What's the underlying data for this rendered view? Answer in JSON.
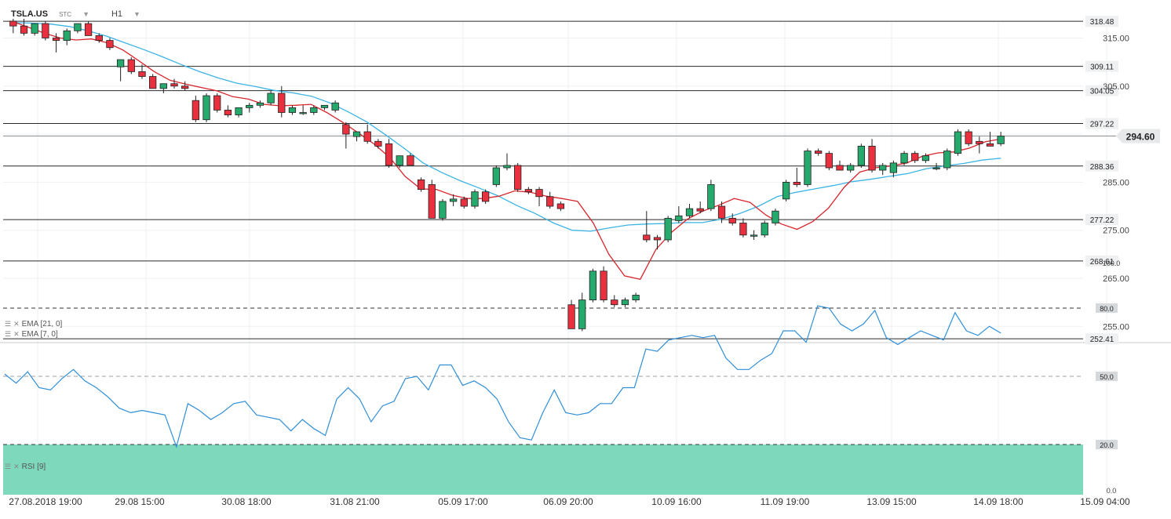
{
  "header": {
    "symbol": "TSLA.US",
    "source": "STC",
    "timeframe": "H1"
  },
  "price_pane": {
    "level_lines": [
      "318.48",
      "309.11",
      "304.05",
      "297.22",
      "288.36",
      "277.22",
      "268.61",
      "252.41"
    ],
    "current_price": "294.60",
    "y_ticks": [
      "315.00",
      "305.00",
      "285.00",
      "275.00",
      "265.00",
      "255.00"
    ],
    "indicator_legend": [
      "EMA [21, 0]",
      "EMA [7, 0]"
    ]
  },
  "rsi_pane": {
    "label": "RSI [9]",
    "y_ticks": [
      "100.0",
      "80.0",
      "50.0",
      "20.0",
      "0.0"
    ],
    "levels": {
      "overbought": 80,
      "middle": 50,
      "oversold": 20
    }
  },
  "x_labels": [
    "27.08.2018 19:00",
    "29.08 15:00",
    "30.08 18:00",
    "31.08 21:00",
    "05.09 17:00",
    "06.09 20:00",
    "10.09 16:00",
    "11.09 19:00",
    "13.09 15:00",
    "14.09 18:00",
    "15.09 04:00"
  ],
  "colors": {
    "bull": "#26a96c",
    "bear": "#e8303f",
    "ema_fast": "#d9252c",
    "ema_slow": "#3bb4e5",
    "rsi_line": "#2f8fd8",
    "overbought_zone": "#e57f7b",
    "oversold_zone": "#7ed8bb",
    "price_tag": "#e6e8ea"
  },
  "chart_data": [
    {
      "type": "candlestick",
      "title": "TSLA.US",
      "ylim": [
        250,
        320
      ],
      "series": [
        {
          "name": "TSLA.US",
          "candles": [
            {
              "o": 318.5,
              "h": 319.0,
              "l": 316.0,
              "c": 317.5
            },
            {
              "o": 317.5,
              "h": 319.0,
              "l": 315.5,
              "c": 316.0
            },
            {
              "o": 316.0,
              "h": 318.0,
              "l": 315.5,
              "c": 318.0
            },
            {
              "o": 318.0,
              "h": 318.5,
              "l": 314.5,
              "c": 315.0
            },
            {
              "o": 315.0,
              "h": 316.0,
              "l": 312.0,
              "c": 314.5
            },
            {
              "o": 314.5,
              "h": 317.0,
              "l": 313.5,
              "c": 316.5
            },
            {
              "o": 316.5,
              "h": 318.0,
              "l": 316.0,
              "c": 318.0
            },
            {
              "o": 318.0,
              "h": 318.5,
              "l": 315.5,
              "c": 315.5
            },
            {
              "o": 315.5,
              "h": 316.0,
              "l": 314.0,
              "c": 314.5
            },
            {
              "o": 314.5,
              "h": 315.0,
              "l": 312.5,
              "c": 313.0
            },
            {
              "o": 309.0,
              "h": 310.0,
              "l": 306.0,
              "c": 310.5
            },
            {
              "o": 310.5,
              "h": 311.0,
              "l": 307.5,
              "c": 308.0
            },
            {
              "o": 308.0,
              "h": 309.5,
              "l": 306.5,
              "c": 307.0
            },
            {
              "o": 307.0,
              "h": 307.5,
              "l": 304.5,
              "c": 304.5
            },
            {
              "o": 304.5,
              "h": 305.5,
              "l": 303.5,
              "c": 305.5
            },
            {
              "o": 305.5,
              "h": 306.5,
              "l": 304.5,
              "c": 305.0
            },
            {
              "o": 305.0,
              "h": 306.0,
              "l": 304.0,
              "c": 304.5
            },
            {
              "o": 302.0,
              "h": 303.0,
              "l": 297.5,
              "c": 298.0
            },
            {
              "o": 298.0,
              "h": 303.5,
              "l": 297.5,
              "c": 303.0
            },
            {
              "o": 303.0,
              "h": 303.5,
              "l": 299.5,
              "c": 300.0
            },
            {
              "o": 300.0,
              "h": 301.0,
              "l": 298.5,
              "c": 299.0
            },
            {
              "o": 299.0,
              "h": 300.5,
              "l": 298.5,
              "c": 300.5
            },
            {
              "o": 300.5,
              "h": 301.5,
              "l": 299.5,
              "c": 301.0
            },
            {
              "o": 301.0,
              "h": 302.0,
              "l": 300.5,
              "c": 301.5
            },
            {
              "o": 301.5,
              "h": 304.0,
              "l": 301.0,
              "c": 303.5
            },
            {
              "o": 303.5,
              "h": 305.0,
              "l": 298.5,
              "c": 299.5
            },
            {
              "o": 299.5,
              "h": 301.0,
              "l": 299.0,
              "c": 300.5
            },
            {
              "o": 299.5,
              "h": 301.0,
              "l": 299.0,
              "c": 299.5
            },
            {
              "o": 299.5,
              "h": 301.0,
              "l": 299.0,
              "c": 300.5
            },
            {
              "o": 300.5,
              "h": 301.0,
              "l": 300.0,
              "c": 301.0
            },
            {
              "o": 300.0,
              "h": 302.0,
              "l": 299.5,
              "c": 301.5
            },
            {
              "o": 297.0,
              "h": 297.5,
              "l": 292.0,
              "c": 295.0
            },
            {
              "o": 294.5,
              "h": 295.5,
              "l": 293.5,
              "c": 295.5
            },
            {
              "o": 295.5,
              "h": 297.0,
              "l": 293.0,
              "c": 293.5
            },
            {
              "o": 293.5,
              "h": 294.0,
              "l": 292.0,
              "c": 292.5
            },
            {
              "o": 293.0,
              "h": 294.0,
              "l": 288.0,
              "c": 288.5
            },
            {
              "o": 288.5,
              "h": 290.5,
              "l": 288.0,
              "c": 290.5
            },
            {
              "o": 290.5,
              "h": 291.0,
              "l": 288.5,
              "c": 288.5
            },
            {
              "o": 285.5,
              "h": 286.0,
              "l": 283.0,
              "c": 283.5
            },
            {
              "o": 284.5,
              "h": 285.5,
              "l": 277.5,
              "c": 277.5
            },
            {
              "o": 277.5,
              "h": 281.5,
              "l": 277.0,
              "c": 281.0
            },
            {
              "o": 281.0,
              "h": 282.5,
              "l": 280.0,
              "c": 281.5
            },
            {
              "o": 281.5,
              "h": 282.0,
              "l": 279.5,
              "c": 280.0
            },
            {
              "o": 280.0,
              "h": 283.5,
              "l": 279.5,
              "c": 283.0
            },
            {
              "o": 283.0,
              "h": 283.5,
              "l": 280.5,
              "c": 281.0
            },
            {
              "o": 284.5,
              "h": 288.5,
              "l": 284.0,
              "c": 288.0
            },
            {
              "o": 288.0,
              "h": 291.0,
              "l": 287.5,
              "c": 288.5
            },
            {
              "o": 288.5,
              "h": 289.0,
              "l": 283.0,
              "c": 283.5
            },
            {
              "o": 283.5,
              "h": 284.0,
              "l": 282.5,
              "c": 283.0
            },
            {
              "o": 283.5,
              "h": 284.0,
              "l": 280.0,
              "c": 282.0
            },
            {
              "o": 282.0,
              "h": 283.0,
              "l": 279.5,
              "c": 280.0
            },
            {
              "o": 280.5,
              "h": 281.0,
              "l": 279.0,
              "c": 279.5
            },
            {
              "o": 259.5,
              "h": 260.5,
              "l": 254.5,
              "c": 254.5
            },
            {
              "o": 254.5,
              "h": 262.0,
              "l": 254.0,
              "c": 260.5
            },
            {
              "o": 260.5,
              "h": 267.0,
              "l": 260.0,
              "c": 266.5
            },
            {
              "o": 266.5,
              "h": 267.5,
              "l": 260.0,
              "c": 260.5
            },
            {
              "o": 260.5,
              "h": 261.5,
              "l": 259.0,
              "c": 259.5
            },
            {
              "o": 259.5,
              "h": 261.0,
              "l": 259.0,
              "c": 260.5
            },
            {
              "o": 260.5,
              "h": 262.0,
              "l": 260.0,
              "c": 261.5
            },
            {
              "o": 274.0,
              "h": 279.0,
              "l": 272.5,
              "c": 273.0
            },
            {
              "o": 273.5,
              "h": 274.0,
              "l": 271.0,
              "c": 273.0
            },
            {
              "o": 273.0,
              "h": 278.0,
              "l": 272.5,
              "c": 277.5
            },
            {
              "o": 277.0,
              "h": 280.0,
              "l": 276.5,
              "c": 278.0
            },
            {
              "o": 278.0,
              "h": 280.5,
              "l": 277.5,
              "c": 279.5
            },
            {
              "o": 279.5,
              "h": 281.0,
              "l": 278.5,
              "c": 279.0
            },
            {
              "o": 279.5,
              "h": 285.5,
              "l": 279.0,
              "c": 284.5
            },
            {
              "o": 280.0,
              "h": 281.0,
              "l": 276.5,
              "c": 277.5
            },
            {
              "o": 277.5,
              "h": 278.5,
              "l": 276.0,
              "c": 276.5
            },
            {
              "o": 276.5,
              "h": 277.5,
              "l": 273.5,
              "c": 274.0
            },
            {
              "o": 274.0,
              "h": 275.0,
              "l": 273.0,
              "c": 274.0
            },
            {
              "o": 274.0,
              "h": 277.0,
              "l": 273.5,
              "c": 276.5
            },
            {
              "o": 276.5,
              "h": 279.5,
              "l": 276.0,
              "c": 279.0
            },
            {
              "o": 281.5,
              "h": 285.5,
              "l": 281.0,
              "c": 285.0
            },
            {
              "o": 285.0,
              "h": 288.0,
              "l": 284.0,
              "c": 284.5
            },
            {
              "o": 284.5,
              "h": 292.0,
              "l": 284.0,
              "c": 291.5
            },
            {
              "o": 291.5,
              "h": 292.0,
              "l": 290.5,
              "c": 291.0
            },
            {
              "o": 291.0,
              "h": 291.5,
              "l": 287.5,
              "c": 288.0
            },
            {
              "o": 288.5,
              "h": 289.5,
              "l": 287.5,
              "c": 287.5
            },
            {
              "o": 287.5,
              "h": 289.0,
              "l": 287.0,
              "c": 288.5
            },
            {
              "o": 288.5,
              "h": 293.0,
              "l": 288.0,
              "c": 292.5
            },
            {
              "o": 292.5,
              "h": 294.0,
              "l": 287.0,
              "c": 287.5
            },
            {
              "o": 287.5,
              "h": 289.0,
              "l": 286.5,
              "c": 288.5
            },
            {
              "o": 287.0,
              "h": 289.5,
              "l": 286.0,
              "c": 289.0
            },
            {
              "o": 289.0,
              "h": 291.5,
              "l": 288.5,
              "c": 291.0
            },
            {
              "o": 291.0,
              "h": 291.5,
              "l": 289.0,
              "c": 289.5
            },
            {
              "o": 289.5,
              "h": 291.0,
              "l": 289.0,
              "c": 290.5
            },
            {
              "o": 288.0,
              "h": 289.0,
              "l": 287.5,
              "c": 288.0
            },
            {
              "o": 288.0,
              "h": 292.0,
              "l": 287.5,
              "c": 291.5
            },
            {
              "o": 291.0,
              "h": 296.0,
              "l": 290.5,
              "c": 295.5
            },
            {
              "o": 295.5,
              "h": 296.0,
              "l": 292.5,
              "c": 293.0
            },
            {
              "o": 293.5,
              "h": 294.5,
              "l": 291.0,
              "c": 293.0
            },
            {
              "o": 293.0,
              "h": 295.5,
              "l": 292.5,
              "c": 292.5
            },
            {
              "o": 293.0,
              "h": 295.5,
              "l": 292.5,
              "c": 294.6
            }
          ]
        },
        {
          "name": "EMA [7, 0]",
          "values": [
            318.4,
            317.2,
            316.0,
            315.0,
            314.6,
            314.8,
            314.0,
            312.5,
            310.3,
            308.0,
            306.2,
            305.4,
            304.7,
            304.0,
            302.8,
            302.3,
            301.2,
            300.9,
            301.0,
            301.2,
            299.5,
            297.5,
            295.3,
            293.0,
            290.2,
            286.2,
            283.6,
            283.5,
            282.3,
            281.6,
            281.6,
            282.1,
            283.2,
            282.9,
            282.1,
            281.6,
            281.0,
            276.5,
            270.0,
            265.5,
            264.8,
            271.0,
            274.6,
            277.3,
            279.0,
            280.2,
            281.6,
            280.8,
            278.2,
            276.3,
            275.2,
            276.8,
            279.6,
            283.9,
            287.1,
            288.0,
            288.4,
            289.0,
            290.4,
            291.1,
            291.3,
            292.1,
            293.4,
            294.0
          ]
        },
        {
          "name": "EMA [21, 0]",
          "values": [
            318.2,
            318.1,
            317.9,
            317.4,
            316.5,
            315.4,
            314.0,
            312.6,
            311.1,
            309.5,
            308.0,
            306.7,
            305.6,
            304.9,
            304.1,
            303.6,
            302.9,
            301.5,
            299.6,
            297.5,
            294.8,
            292.0,
            289.0,
            287.0,
            285.3,
            283.8,
            282.2,
            280.2,
            278.5,
            276.5,
            275.0,
            274.8,
            275.5,
            276.1,
            276.3,
            276.4,
            276.6,
            276.6,
            277.3,
            278.5,
            280.0,
            282.0,
            282.9,
            283.6,
            284.3,
            285.1,
            285.6,
            286.2,
            286.8,
            287.8,
            288.4,
            288.9,
            289.6,
            290.0
          ]
        }
      ]
    },
    {
      "type": "line",
      "title": "RSI [9]",
      "ylim": [
        0,
        100
      ],
      "series": [
        {
          "name": "RSI [9]",
          "values": [
            51,
            47,
            52,
            45,
            44,
            49,
            53,
            48,
            45,
            41,
            36,
            34,
            35,
            34,
            33,
            19,
            38,
            35,
            31,
            34,
            38,
            39,
            33,
            32,
            31,
            26,
            31,
            27,
            24,
            40,
            45,
            40,
            30,
            37,
            39,
            49,
            50,
            44,
            55,
            55,
            46,
            48,
            45,
            40,
            30,
            23,
            22,
            34,
            44,
            34,
            33,
            34,
            38,
            38,
            45,
            45,
            62,
            61,
            66,
            67,
            68,
            67,
            68,
            58,
            53,
            53,
            57,
            60,
            70,
            70,
            65,
            81,
            80,
            73,
            70,
            73,
            79,
            67,
            64,
            67,
            70,
            68,
            66,
            78,
            70,
            68,
            72,
            69
          ]
        }
      ]
    }
  ]
}
